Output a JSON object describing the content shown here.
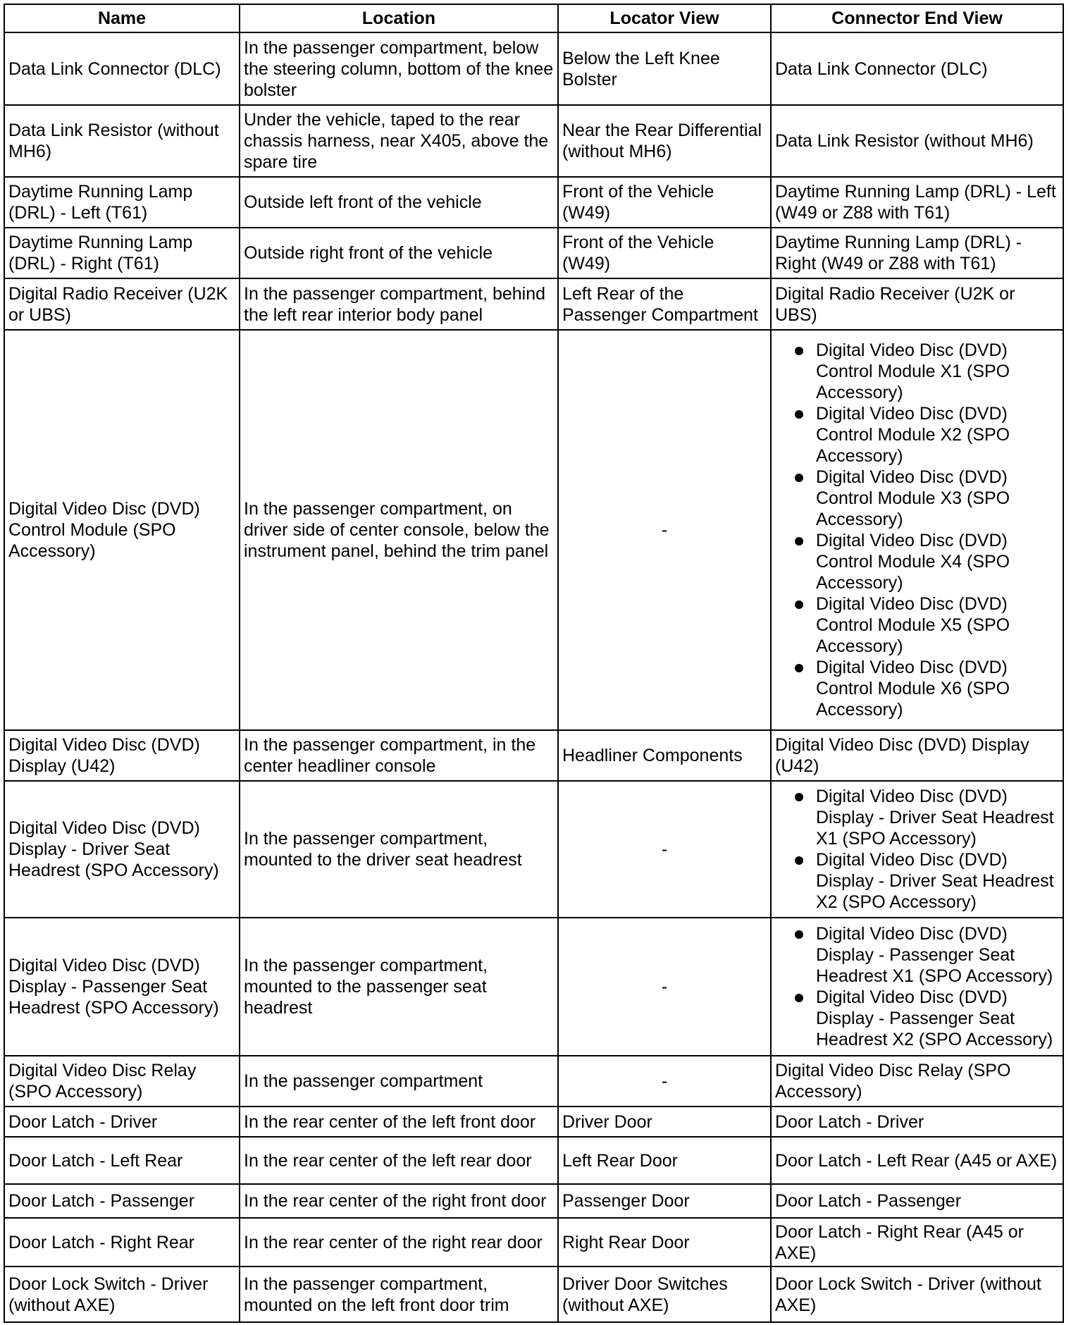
{
  "headers": [
    "Name",
    "Location",
    "Locator View",
    "Connector End View"
  ],
  "rows": [
    {
      "name": "Data Link Connector (DLC)",
      "location": "In the passenger compartment, below the steering column, bottom of the knee bolster",
      "locator": "Below the Left Knee Bolster",
      "connector": [
        "Data Link Connector (DLC)"
      ]
    },
    {
      "name": "Data Link Resistor (without MH6)",
      "location": "Under the vehicle, taped to the rear chassis harness, near X405, above the spare tire",
      "locator": "Near the Rear Differential (without MH6)",
      "connector": [
        "Data Link Resistor (without MH6)"
      ]
    },
    {
      "name": "Daytime Running Lamp (DRL) - Left (T61)",
      "location": "Outside left front of the vehicle",
      "locator": "Front of the Vehicle (W49)",
      "connector": [
        "Daytime Running Lamp (DRL) - Left (W49 or Z88 with T61)"
      ]
    },
    {
      "name": "Daytime Running Lamp (DRL) - Right (T61)",
      "location": "Outside right front of the vehicle",
      "locator": "Front of the Vehicle (W49)",
      "connector": [
        "Daytime Running Lamp (DRL) - Right (W49 or Z88 with T61)"
      ]
    },
    {
      "name": "Digital Radio Receiver (U2K or UBS)",
      "location": "In the passenger compartment, behind the left rear interior body panel",
      "locator": "Left Rear of the Passenger Compartment",
      "connector": [
        "Digital Radio Receiver (U2K or UBS)"
      ]
    },
    {
      "name": "Digital Video Disc (DVD) Control Module (SPO Accessory)",
      "location": "In the passenger compartment, on driver side of center console, below the instrument panel, behind the trim panel",
      "locator": "-",
      "connector": [
        "Digital Video Disc (DVD) Control Module X1 (SPO Accessory)",
        "Digital Video Disc (DVD) Control Module X2 (SPO Accessory)",
        "Digital Video Disc (DVD) Control Module X3 (SPO Accessory)",
        "Digital Video Disc (DVD) Control Module X4 (SPO Accessory)",
        "Digital Video Disc (DVD) Control Module X5 (SPO Accessory)",
        "Digital Video Disc (DVD) Control Module X6 (SPO Accessory)"
      ]
    },
    {
      "name": "Digital Video Disc (DVD) Display (U42)",
      "location": "In the passenger compartment, in the center headliner console",
      "locator": "Headliner Components",
      "connector": [
        "Digital Video Disc (DVD) Display (U42)"
      ]
    },
    {
      "name": "Digital Video Disc (DVD) Display - Driver Seat Headrest (SPO Accessory)",
      "location": "In the passenger compartment, mounted to the driver seat headrest",
      "locator": "-",
      "connector": [
        "Digital Video Disc (DVD) Display - Driver Seat Headrest X1 (SPO Accessory)",
        "Digital Video Disc (DVD) Display - Driver Seat Headrest X2 (SPO Accessory)"
      ]
    },
    {
      "name": "Digital Video Disc (DVD) Display - Passenger Seat Headrest (SPO Accessory)",
      "location": "In the passenger compartment, mounted to the passenger seat headrest",
      "locator": "-",
      "connector": [
        "Digital Video Disc (DVD) Display - Passenger Seat Headrest X1 (SPO Accessory)",
        "Digital Video Disc (DVD) Display - Passenger Seat Headrest X2 (SPO Accessory)"
      ]
    },
    {
      "name": "Digital Video Disc Relay (SPO Accessory)",
      "location": "In the passenger compartment",
      "locator": "-",
      "connector": [
        "Digital Video Disc Relay (SPO Accessory)"
      ]
    },
    {
      "name": "Door Latch - Driver",
      "location": "In the rear center of the left front door",
      "locator": "Driver Door",
      "connector": [
        "Door Latch - Driver"
      ]
    },
    {
      "name": "Door Latch - Left Rear",
      "location": "In the rear center of the left rear door",
      "locator": "Left Rear Door",
      "connector": [
        "Door Latch - Left Rear (A45 or AXE)"
      ]
    },
    {
      "name": "Door Latch - Passenger",
      "location": "In the rear center of the right front door",
      "locator": "Passenger Door",
      "connector": [
        "Door Latch - Passenger"
      ]
    },
    {
      "name": "Door Latch - Right Rear",
      "location": "In the rear center of the right rear door",
      "locator": "Right Rear Door",
      "connector": [
        "Door Latch - Right Rear (A45 or AXE)"
      ]
    },
    {
      "name": "Door Lock Switch - Driver (without AXE)",
      "location": "In the passenger compartment, mounted on the left front door trim",
      "locator": "Driver Door Switches (without AXE)",
      "connector": [
        "Door Lock Switch - Driver (without AXE)"
      ]
    }
  ]
}
